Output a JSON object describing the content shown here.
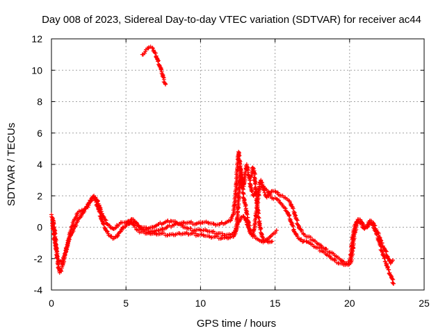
{
  "chart_data": {
    "type": "scatter",
    "title": "Day 008 of 2023, Sidereal Day-to-day VTEC variation (SDTVAR) for receiver ac44",
    "xlabel": "GPS time / hours",
    "ylabel": "SDTVAR / TECUs",
    "xlim": [
      0,
      25
    ],
    "ylim": [
      -4,
      12
    ],
    "xticks": [
      0,
      5,
      10,
      15,
      20,
      25
    ],
    "yticks": [
      -4,
      -2,
      0,
      2,
      4,
      6,
      8,
      10,
      12
    ],
    "grid": true,
    "marker": "+",
    "color": "#ff0000",
    "series": [
      {
        "name": "track-a",
        "points": [
          [
            0.0,
            0.8
          ],
          [
            0.15,
            0.3
          ],
          [
            0.25,
            -0.6
          ],
          [
            0.35,
            -1.6
          ],
          [
            0.45,
            -2.4
          ],
          [
            0.55,
            -2.9
          ],
          [
            0.7,
            -2.6
          ],
          [
            0.9,
            -1.8
          ],
          [
            1.1,
            -1.0
          ],
          [
            1.3,
            -0.5
          ],
          [
            1.5,
            -0.1
          ],
          [
            1.7,
            0.3
          ],
          [
            1.9,
            0.6
          ],
          [
            2.1,
            0.9
          ],
          [
            2.3,
            1.2
          ],
          [
            2.5,
            1.4
          ],
          [
            2.7,
            1.8
          ],
          [
            2.85,
            2.0
          ],
          [
            3.0,
            1.6
          ],
          [
            3.2,
            1.0
          ],
          [
            3.4,
            0.4
          ],
          [
            3.6,
            -0.1
          ],
          [
            3.8,
            -0.4
          ],
          [
            4.0,
            -0.6
          ],
          [
            4.2,
            -0.7
          ],
          [
            4.4,
            -0.6
          ],
          [
            4.6,
            -0.3
          ],
          [
            4.8,
            0.0
          ],
          [
            5.0,
            0.1
          ],
          [
            5.2,
            0.2
          ],
          [
            5.4,
            0.3
          ],
          [
            5.6,
            0.0
          ],
          [
            5.8,
            -0.2
          ],
          [
            6.0,
            -0.3
          ],
          [
            6.3,
            -0.4
          ],
          [
            6.6,
            -0.4
          ],
          [
            7.0,
            -0.4
          ],
          [
            7.4,
            -0.4
          ],
          [
            7.8,
            -0.5
          ],
          [
            8.2,
            -0.5
          ],
          [
            8.6,
            -0.4
          ],
          [
            9.0,
            -0.4
          ],
          [
            9.4,
            -0.4
          ],
          [
            9.8,
            -0.5
          ],
          [
            10.2,
            -0.5
          ],
          [
            10.6,
            -0.6
          ],
          [
            11.0,
            -0.6
          ],
          [
            11.4,
            -0.7
          ],
          [
            11.8,
            -0.7
          ],
          [
            12.2,
            -0.6
          ],
          [
            12.4,
            -0.2
          ],
          [
            12.5,
            1.0
          ],
          [
            12.6,
            2.5
          ],
          [
            12.7,
            3.6
          ],
          [
            12.8,
            3.2
          ],
          [
            12.9,
            2.6
          ],
          [
            13.0,
            3.4
          ],
          [
            13.1,
            4.0
          ],
          [
            13.2,
            3.5
          ],
          [
            13.3,
            3.0
          ],
          [
            13.4,
            2.4
          ],
          [
            13.55,
            2.0
          ],
          [
            13.7,
            2.2
          ],
          [
            13.9,
            2.4
          ],
          [
            14.1,
            2.6
          ],
          [
            14.3,
            2.5
          ],
          [
            14.5,
            2.3
          ],
          [
            14.7,
            2.0
          ],
          [
            14.9,
            1.8
          ],
          [
            15.1,
            1.8
          ],
          [
            15.3,
            1.6
          ],
          [
            15.5,
            1.4
          ],
          [
            15.7,
            1.2
          ],
          [
            15.9,
            0.8
          ],
          [
            16.1,
            0.3
          ],
          [
            16.3,
            -0.3
          ],
          [
            16.5,
            -0.6
          ],
          [
            16.7,
            -0.8
          ],
          [
            16.9,
            -0.9
          ],
          [
            17.1,
            -0.9
          ],
          [
            17.3,
            -1.0
          ],
          [
            17.5,
            -1.1
          ],
          [
            17.8,
            -1.3
          ],
          [
            18.1,
            -1.5
          ],
          [
            18.4,
            -1.7
          ],
          [
            18.7,
            -1.9
          ],
          [
            19.0,
            -2.1
          ],
          [
            19.3,
            -2.3
          ],
          [
            19.6,
            -2.4
          ],
          [
            19.9,
            -2.4
          ],
          [
            20.1,
            -2.2
          ],
          [
            20.2,
            -1.5
          ],
          [
            20.3,
            -0.6
          ],
          [
            20.45,
            0.1
          ],
          [
            20.6,
            0.4
          ],
          [
            20.8,
            0.2
          ],
          [
            21.0,
            -0.1
          ],
          [
            21.2,
            0.0
          ],
          [
            21.4,
            0.3
          ],
          [
            21.6,
            0.1
          ],
          [
            21.8,
            -0.4
          ],
          [
            22.0,
            -1.0
          ],
          [
            22.2,
            -1.6
          ],
          [
            22.4,
            -2.2
          ],
          [
            22.6,
            -2.7
          ],
          [
            22.8,
            -3.2
          ],
          [
            22.95,
            -3.6
          ]
        ]
      },
      {
        "name": "track-b",
        "points": [
          [
            0.05,
            0.4
          ],
          [
            0.15,
            -0.4
          ],
          [
            0.3,
            -1.3
          ],
          [
            0.4,
            -2.0
          ],
          [
            0.55,
            -2.2
          ],
          [
            0.75,
            -2.1
          ],
          [
            0.95,
            -1.6
          ],
          [
            1.15,
            -0.8
          ],
          [
            1.35,
            0.0
          ],
          [
            1.55,
            0.5
          ],
          [
            1.75,
            0.9
          ],
          [
            1.95,
            1.0
          ],
          [
            2.15,
            1.1
          ],
          [
            2.35,
            1.3
          ],
          [
            2.55,
            1.6
          ],
          [
            2.75,
            1.9
          ],
          [
            2.95,
            1.9
          ],
          [
            3.15,
            1.5
          ],
          [
            3.35,
            1.0
          ],
          [
            3.55,
            0.5
          ],
          [
            3.75,
            0.2
          ],
          [
            3.95,
            0.0
          ],
          [
            4.15,
            -0.1
          ],
          [
            4.35,
            0.0
          ],
          [
            4.55,
            0.2
          ],
          [
            4.75,
            0.3
          ],
          [
            4.95,
            0.3
          ],
          [
            5.15,
            0.4
          ],
          [
            5.35,
            0.5
          ],
          [
            5.55,
            0.4
          ],
          [
            5.75,
            0.2
          ],
          [
            5.95,
            0.0
          ],
          [
            6.25,
            -0.2
          ],
          [
            6.55,
            -0.3
          ],
          [
            6.85,
            -0.3
          ],
          [
            7.15,
            -0.2
          ],
          [
            7.45,
            -0.1
          ],
          [
            7.75,
            0.0
          ],
          [
            8.1,
            0.1
          ],
          [
            8.5,
            0.2
          ],
          [
            8.9,
            0.3
          ],
          [
            9.3,
            0.3
          ],
          [
            9.7,
            0.2
          ],
          [
            10.1,
            0.3
          ],
          [
            10.5,
            0.3
          ],
          [
            10.9,
            0.2
          ],
          [
            11.3,
            0.2
          ],
          [
            11.7,
            0.3
          ],
          [
            12.0,
            0.4
          ],
          [
            12.2,
            0.8
          ],
          [
            12.35,
            2.0
          ],
          [
            12.45,
            3.4
          ],
          [
            12.55,
            4.8
          ],
          [
            12.65,
            4.0
          ],
          [
            12.75,
            3.0
          ],
          [
            12.85,
            2.2
          ],
          [
            12.95,
            1.6
          ],
          [
            13.05,
            1.2
          ],
          [
            13.15,
            0.6
          ],
          [
            13.25,
            0.1
          ],
          [
            13.35,
            -0.4
          ],
          [
            13.5,
            -0.6
          ],
          [
            13.65,
            0.2
          ],
          [
            13.8,
            1.4
          ],
          [
            13.95,
            2.6
          ],
          [
            14.05,
            3.0
          ],
          [
            14.15,
            2.7
          ],
          [
            14.3,
            2.2
          ],
          [
            14.45,
            1.9
          ],
          [
            14.6,
            2.1
          ],
          [
            14.8,
            2.3
          ],
          [
            15.0,
            2.3
          ],
          [
            15.2,
            2.2
          ],
          [
            15.4,
            2.0
          ],
          [
            15.6,
            1.9
          ],
          [
            15.8,
            1.8
          ],
          [
            16.0,
            1.6
          ],
          [
            16.2,
            1.2
          ],
          [
            16.4,
            0.6
          ],
          [
            16.6,
            0.0
          ],
          [
            16.8,
            -0.3
          ],
          [
            17.0,
            -0.5
          ],
          [
            17.2,
            -0.6
          ],
          [
            17.5,
            -0.8
          ],
          [
            17.8,
            -1.0
          ],
          [
            18.1,
            -1.2
          ],
          [
            18.4,
            -1.4
          ],
          [
            18.7,
            -1.6
          ],
          [
            19.0,
            -1.8
          ],
          [
            19.3,
            -2.0
          ],
          [
            19.6,
            -2.2
          ],
          [
            19.9,
            -2.3
          ],
          [
            20.05,
            -2.1
          ],
          [
            20.15,
            -1.2
          ],
          [
            20.25,
            -0.3
          ],
          [
            20.4,
            0.2
          ],
          [
            20.55,
            0.5
          ],
          [
            20.75,
            0.4
          ],
          [
            20.95,
            0.1
          ],
          [
            21.15,
            0.1
          ],
          [
            21.35,
            0.4
          ],
          [
            21.55,
            0.3
          ],
          [
            21.75,
            -0.1
          ],
          [
            21.95,
            -0.5
          ],
          [
            22.15,
            -1.0
          ],
          [
            22.35,
            -1.4
          ],
          [
            22.55,
            -1.9
          ],
          [
            22.75,
            -2.3
          ],
          [
            22.9,
            -2.1
          ]
        ]
      },
      {
        "name": "track-c",
        "points": [
          [
            5.2,
            0.3
          ],
          [
            5.6,
            0.3
          ],
          [
            6.0,
            0.0
          ],
          [
            6.4,
            -0.1
          ],
          [
            6.8,
            0.0
          ],
          [
            7.2,
            0.2
          ],
          [
            7.6,
            0.3
          ],
          [
            8.0,
            0.4
          ],
          [
            8.4,
            0.3
          ],
          [
            8.8,
            0.1
          ],
          [
            9.2,
            -0.1
          ],
          [
            9.6,
            -0.2
          ],
          [
            10.0,
            -0.2
          ],
          [
            10.4,
            -0.2
          ],
          [
            10.8,
            -0.3
          ],
          [
            11.2,
            -0.4
          ],
          [
            11.6,
            -0.5
          ],
          [
            12.0,
            -0.5
          ],
          [
            12.3,
            -0.3
          ],
          [
            12.5,
            0.2
          ],
          [
            12.7,
            0.6
          ],
          [
            12.9,
            0.7
          ],
          [
            13.1,
            0.3
          ],
          [
            13.3,
            -0.2
          ],
          [
            13.5,
            -0.5
          ],
          [
            13.7,
            -0.7
          ],
          [
            13.9,
            -0.8
          ],
          [
            14.1,
            -0.9
          ],
          [
            14.3,
            -0.9
          ],
          [
            14.5,
            -0.8
          ],
          [
            14.7,
            -0.6
          ],
          [
            14.9,
            -0.4
          ],
          [
            15.1,
            -0.2
          ]
        ]
      },
      {
        "name": "track-d",
        "points": [
          [
            13.4,
            3.2
          ],
          [
            13.5,
            3.8
          ],
          [
            13.6,
            3.6
          ],
          [
            13.7,
            2.4
          ],
          [
            13.8,
            1.4
          ],
          [
            13.9,
            0.6
          ],
          [
            14.0,
            0.0
          ],
          [
            14.1,
            -0.5
          ],
          [
            14.2,
            -0.8
          ],
          [
            14.5,
            -0.9
          ],
          [
            14.8,
            -0.9
          ]
        ]
      },
      {
        "name": "track-e",
        "points": [
          [
            6.1,
            11.0
          ],
          [
            6.3,
            11.2
          ],
          [
            6.5,
            11.4
          ],
          [
            6.65,
            11.5
          ],
          [
            6.8,
            11.4
          ],
          [
            6.95,
            11.1
          ],
          [
            7.1,
            10.7
          ],
          [
            7.25,
            10.3
          ],
          [
            7.4,
            9.9
          ],
          [
            7.55,
            9.4
          ],
          [
            7.65,
            9.1
          ]
        ]
      }
    ]
  }
}
